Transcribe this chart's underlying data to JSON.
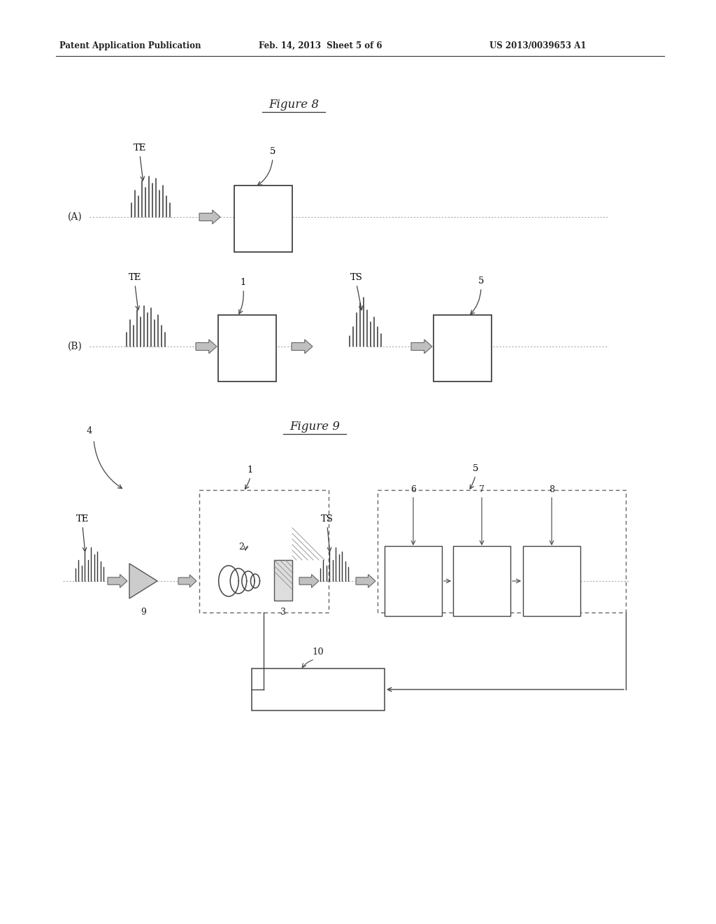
{
  "header_left": "Patent Application Publication",
  "header_center": "Feb. 14, 2013  Sheet 5 of 6",
  "header_right": "US 2013/0039653 A1",
  "fig8_title": "Figure 8",
  "fig9_title": "Figure 9",
  "bg_color": "#ffffff",
  "text_color": "#000000"
}
